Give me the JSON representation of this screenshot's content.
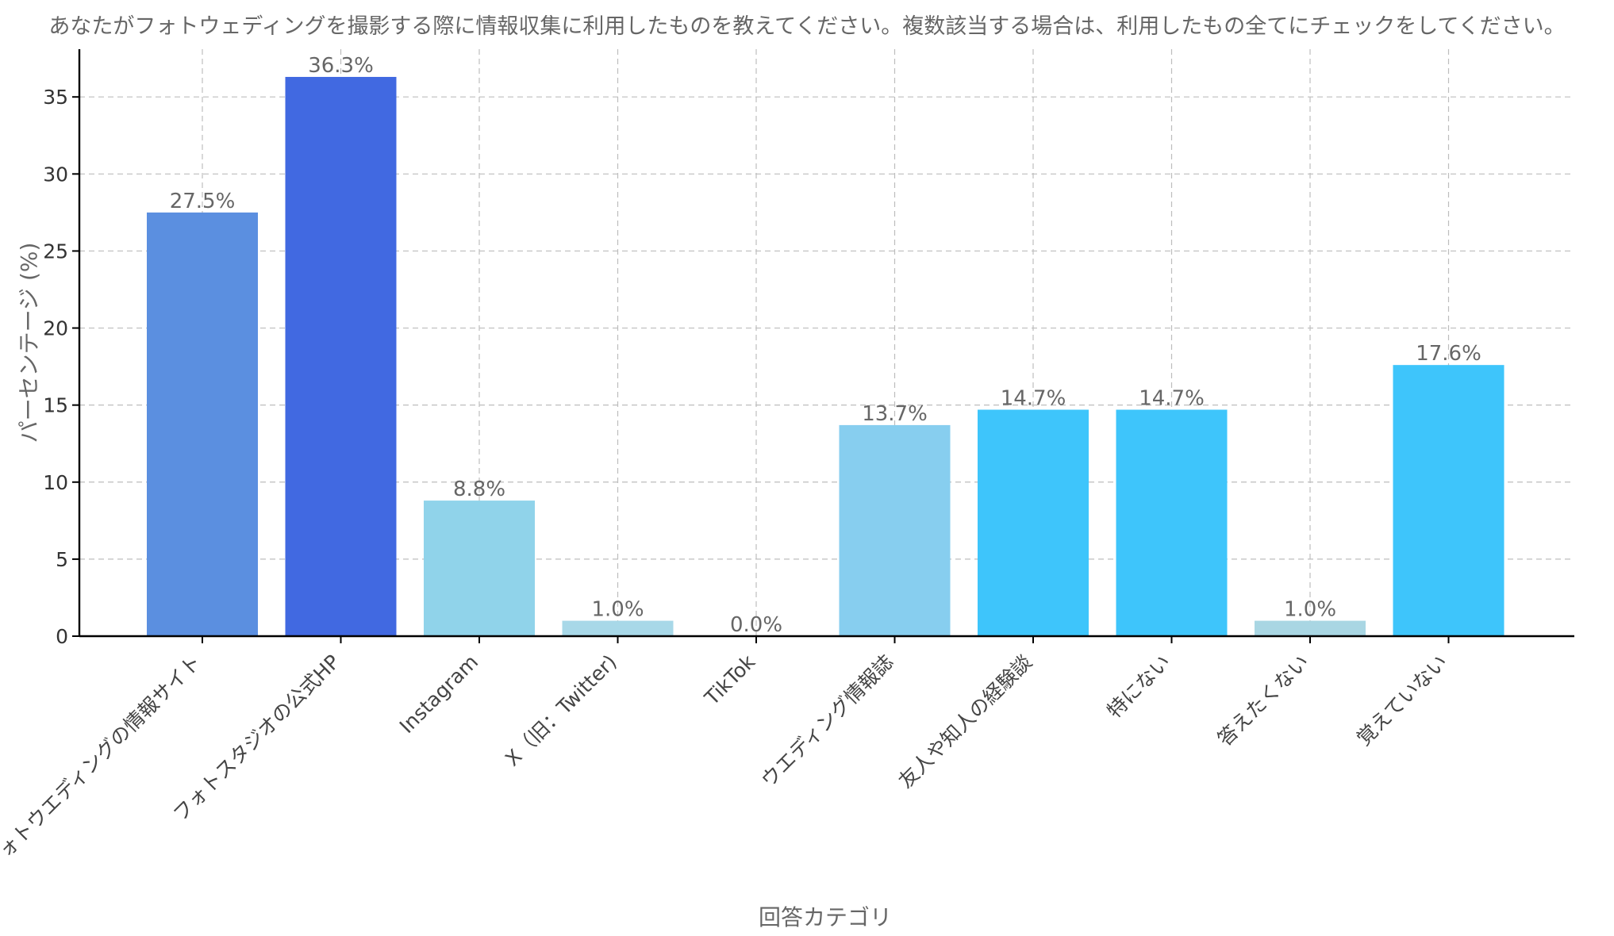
{
  "chart_data": {
    "type": "bar",
    "title": "あなたがフォトウェディングを撮影する際に情報収集に利用したものを教えてください。複数該当する場合は、利用したもの全てにチェックをしてください。",
    "xlabel": "回答カテゴリ",
    "ylabel": "パーセンテージ (%)",
    "categories": [
      "フォトウエディングの情報サイト",
      "フォトスタジオの公式HP",
      "Instagram",
      "X（旧：Twitter)",
      "TikTok",
      "ウエディング情報誌",
      "友人や知人の経験談",
      "特にない",
      "答えたくない",
      "覚えていない"
    ],
    "values": [
      27.5,
      36.3,
      8.8,
      1.0,
      0.0,
      13.7,
      14.7,
      14.7,
      1.0,
      17.6
    ],
    "value_labels": [
      "27.5%",
      "36.3%",
      "8.8%",
      "1.0%",
      "0.0%",
      "13.7%",
      "14.7%",
      "14.7%",
      "1.0%",
      "17.6%"
    ],
    "colors": [
      "#5b8fe0",
      "#4169e1",
      "#90d3ea",
      "#a8d8e8",
      "#b0dff0",
      "#87ceef",
      "#3ec5fb",
      "#3ec5fb",
      "#a9d6e3",
      "#3ec5fb"
    ],
    "yticks": [
      0,
      5,
      10,
      15,
      20,
      25,
      30,
      35
    ],
    "ylim": [
      0,
      38.1
    ],
    "grid": true,
    "legend": "none"
  }
}
